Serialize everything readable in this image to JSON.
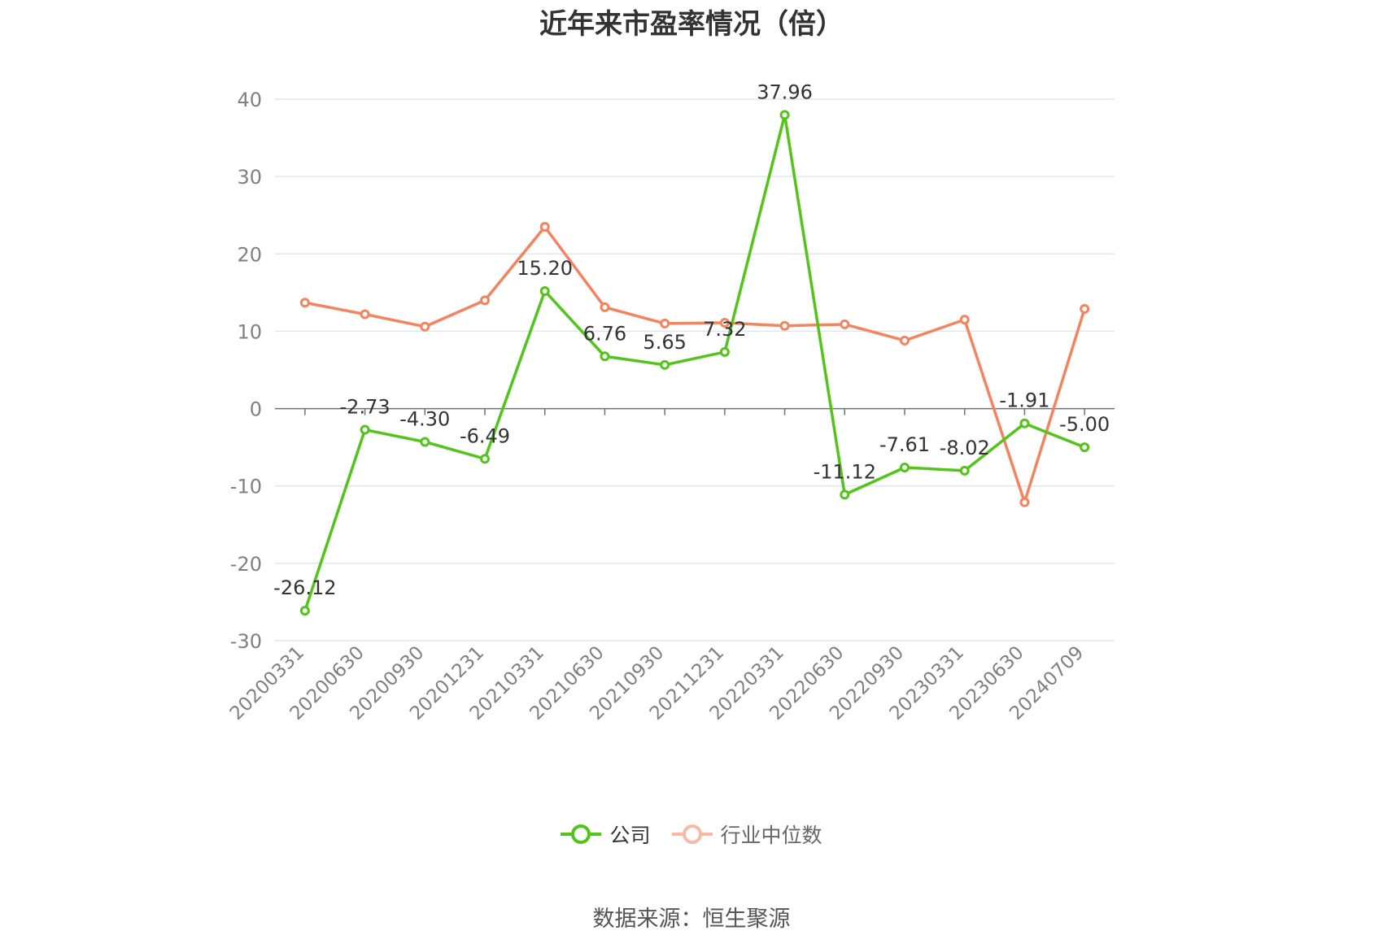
{
  "title": "近年来市盈率情况（倍）",
  "source_text": "数据来源：恒生聚源",
  "legend": {
    "company": "公司",
    "industry": "行业中位数"
  },
  "colors": {
    "company": "#52c41a",
    "industry": "#f4845f",
    "grid": "#e0e6f1",
    "axis": "#6e7079"
  },
  "chart_data": {
    "type": "line",
    "categories": [
      "20200331",
      "20200630",
      "20200930",
      "20201231",
      "20210331",
      "20210630",
      "20210930",
      "20211231",
      "20220331",
      "20220630",
      "20220930",
      "20230331",
      "20230630",
      "20240709"
    ],
    "series": [
      {
        "name": "公司",
        "values": [
          -26.12,
          -2.73,
          -4.3,
          -6.49,
          15.2,
          6.76,
          5.65,
          7.32,
          37.96,
          -11.12,
          -7.61,
          -8.02,
          -1.91,
          -5.0
        ],
        "labels": [
          "-26.12",
          "-2.73",
          "-4.30",
          "-6.49",
          "15.20",
          "6.76",
          "5.65",
          "7.32",
          "37.96",
          "-11.12",
          "-7.61",
          "-8.02",
          "-1.91",
          "-5.00"
        ]
      },
      {
        "name": "行业中位数",
        "values": [
          13.7,
          12.2,
          10.6,
          14.0,
          23.5,
          13.1,
          11.0,
          11.1,
          10.7,
          10.9,
          8.8,
          11.5,
          -12.1,
          12.9
        ]
      }
    ],
    "yticks": [
      40,
      30,
      20,
      10,
      0,
      -10,
      -20,
      -30
    ],
    "ylim": [
      -30,
      40
    ],
    "grid": true,
    "legend_position": "bottom"
  }
}
